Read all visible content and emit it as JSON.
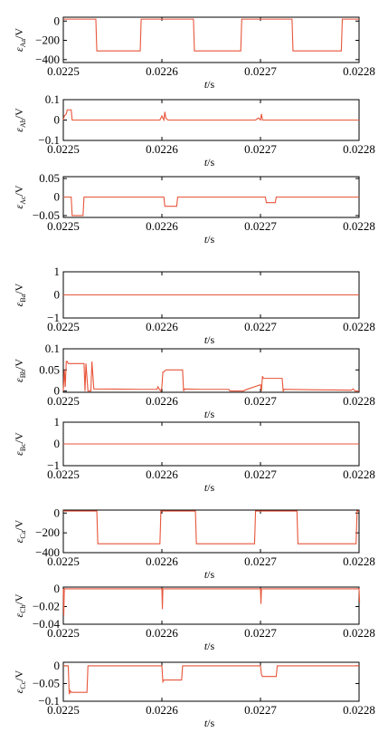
{
  "colors": {
    "trace": "#e8553a",
    "axis": "#000000",
    "background": "#ffffff"
  },
  "chart_data": [
    {
      "type": "line",
      "name": "Aa",
      "xlabel_sym": "t",
      "xlabel_unit": "/s",
      "ylabel_sym": "ε",
      "ylabel_sub": "Aa",
      "ylabel_unit": "/V",
      "xlim": [
        0.0225,
        0.0228
      ],
      "ylim": [
        -430,
        40
      ],
      "xticks": [
        "0.0225",
        "0.0226",
        "0.0227",
        "0.0228"
      ],
      "yticks": [
        {
          "v": 0,
          "t": "0"
        },
        {
          "v": -200,
          "t": "−200"
        },
        {
          "v": -400,
          "t": "−400"
        }
      ],
      "x": [
        0.0225,
        0.022533,
        0.022534,
        0.022578,
        0.022579,
        0.022632,
        0.022633,
        0.02268,
        0.022681,
        0.022732,
        0.022733,
        0.022782,
        0.022783,
        0.0228
      ],
      "y": [
        20,
        20,
        -310,
        -310,
        20,
        20,
        -310,
        -310,
        20,
        20,
        -310,
        -310,
        20,
        20
      ]
    },
    {
      "type": "line",
      "name": "Ab",
      "xlabel_sym": "t",
      "xlabel_unit": "/s",
      "ylabel_sym": "ε",
      "ylabel_sub": "Ab",
      "ylabel_unit": "/V",
      "xlim": [
        0.0225,
        0.0228
      ],
      "ylim": [
        -0.1,
        0.1
      ],
      "xticks": [
        "0.0225",
        "0.0226",
        "0.0227",
        "0.0228"
      ],
      "yticks": [
        {
          "v": 0.1,
          "t": "0.1"
        },
        {
          "v": 0,
          "t": "0"
        },
        {
          "v": -0.1,
          "t": "−0.1"
        }
      ],
      "x": [
        0.0225,
        0.022501,
        0.022503,
        0.022504,
        0.022508,
        0.022509,
        0.02251,
        0.022511,
        0.02254,
        0.022598,
        0.0226,
        0.022602,
        0.022603,
        0.022604,
        0.022606,
        0.02263,
        0.022695,
        0.022698,
        0.0227,
        0.022701,
        0.022702,
        0.02275,
        0.022795,
        0.0228
      ],
      "y": [
        0.0,
        0.02,
        0.03,
        0.05,
        0.05,
        0.0,
        0.0,
        0.0,
        0.0,
        0.0,
        0.02,
        0.0,
        0.04,
        0.01,
        0.0,
        0.0,
        0.0,
        0.01,
        0.0,
        0.03,
        0.0,
        0.0,
        0.0,
        0.0
      ]
    },
    {
      "type": "line",
      "name": "Ac",
      "xlabel_sym": "t",
      "xlabel_unit": "/s",
      "ylabel_sym": "ε",
      "ylabel_sub": "Ac",
      "ylabel_unit": "/V",
      "xlim": [
        0.0225,
        0.0228
      ],
      "ylim": [
        -0.055,
        0.055
      ],
      "xticks": [
        "0.0225",
        "0.0226",
        "0.0227",
        "0.0228"
      ],
      "yticks": [
        {
          "v": 0.05,
          "t": "0.05"
        },
        {
          "v": 0,
          "t": "0"
        },
        {
          "v": -0.05,
          "t": "−0.05"
        }
      ],
      "x": [
        0.0225,
        0.022508,
        0.022509,
        0.02252,
        0.022521,
        0.022602,
        0.022603,
        0.022615,
        0.022616,
        0.022705,
        0.022706,
        0.022715,
        0.022716,
        0.0228
      ],
      "y": [
        0.0,
        0.0,
        -0.05,
        -0.05,
        0.0,
        0.0,
        -0.025,
        -0.025,
        0.0,
        0.0,
        -0.015,
        -0.015,
        0.0,
        0.0
      ]
    },
    {
      "type": "line",
      "name": "Ba",
      "xlabel_sym": "t",
      "xlabel_unit": "/s",
      "ylabel_sym": "ε",
      "ylabel_sub": "Ba",
      "ylabel_unit": "/V",
      "xlim": [
        0.0225,
        0.0228
      ],
      "ylim": [
        -1,
        1
      ],
      "xticks": [
        "0.0225",
        "0.0226",
        "0.0227",
        "0.0228"
      ],
      "yticks": [
        {
          "v": 1,
          "t": "1"
        },
        {
          "v": 0,
          "t": "0"
        },
        {
          "v": -1,
          "t": "−1"
        }
      ],
      "x": [
        0.0225,
        0.0228
      ],
      "y": [
        0,
        0
      ]
    },
    {
      "type": "line",
      "name": "Bb",
      "xlabel_sym": "t",
      "xlabel_unit": "/s",
      "ylabel_sym": "ε",
      "ylabel_sub": "Bb",
      "ylabel_unit": "/V",
      "xlim": [
        0.0225,
        0.0228
      ],
      "ylim": [
        -0.003,
        0.1
      ],
      "xticks": [
        "0.0225",
        "0.0226",
        "0.0227",
        "0.0228"
      ],
      "yticks": [
        {
          "v": 0.1,
          "t": "0.1"
        },
        {
          "v": 0.05,
          "t": "0.05"
        },
        {
          "v": 0,
          "t": "0"
        }
      ],
      "x": [
        0.0225,
        0.022501,
        0.022502,
        0.022503,
        0.022504,
        0.022505,
        0.022521,
        0.022522,
        0.022523,
        0.022525,
        0.022528,
        0.022529,
        0.022531,
        0.02258,
        0.022595,
        0.022596,
        0.022598,
        0.022599,
        0.0226,
        0.022601,
        0.022602,
        0.022604,
        0.022605,
        0.022621,
        0.022622,
        0.022623,
        0.02264,
        0.022668,
        0.022669,
        0.022683,
        0.022684,
        0.0227,
        0.022701,
        0.022702,
        0.022703,
        0.022722,
        0.022723,
        0.022724,
        0.02275,
        0.022792,
        0.022794,
        0.022796,
        0.0228
      ],
      "y": [
        0.0,
        0.05,
        0.01,
        0.07,
        0.07,
        0.065,
        0.065,
        0.0,
        0.065,
        0.0,
        0.0,
        0.07,
        0.005,
        0.004,
        0.004,
        0.01,
        0.002,
        0.0,
        0.01,
        0.045,
        0.045,
        0.05,
        0.05,
        0.05,
        0.0,
        0.005,
        0.004,
        0.004,
        0.0,
        0.0,
        0.002,
        0.015,
        0.0,
        0.035,
        0.03,
        0.03,
        0.0,
        0.004,
        0.003,
        0.002,
        0.005,
        0.0,
        0.0
      ]
    },
    {
      "type": "line",
      "name": "Bc",
      "xlabel_sym": "t",
      "xlabel_unit": "/s",
      "ylabel_sym": "ε",
      "ylabel_sub": "Bc",
      "ylabel_unit": "/V",
      "xlim": [
        0.0225,
        0.0228
      ],
      "ylim": [
        -1,
        1
      ],
      "xticks": [
        "0.0225",
        "0.0226",
        "0.0227",
        "0.0228"
      ],
      "yticks": [
        {
          "v": 1,
          "t": "1"
        },
        {
          "v": 0,
          "t": "0"
        },
        {
          "v": -1,
          "t": "−1"
        }
      ],
      "x": [
        0.0225,
        0.0228
      ],
      "y": [
        0,
        0
      ]
    },
    {
      "type": "line",
      "name": "Ca",
      "xlabel_sym": "t",
      "xlabel_unit": "/s",
      "ylabel_sym": "ε",
      "ylabel_sub": "Ca",
      "ylabel_unit": "/V",
      "xlim": [
        0.0225,
        0.0228
      ],
      "ylim": [
        -400,
        30
      ],
      "xticks": [
        "0.0225",
        "0.0226",
        "0.0227",
        "0.0228"
      ],
      "yticks": [
        {
          "v": 0,
          "t": "0"
        },
        {
          "v": -200,
          "t": "−200"
        },
        {
          "v": -400,
          "t": "−400"
        }
      ],
      "x": [
        0.0225,
        0.022534,
        0.022535,
        0.022598,
        0.022599,
        0.022634,
        0.022635,
        0.022694,
        0.022695,
        0.022737,
        0.022738,
        0.022797,
        0.022798,
        0.0228
      ],
      "y": [
        20,
        20,
        -310,
        -310,
        20,
        20,
        -310,
        -310,
        20,
        20,
        -310,
        -310,
        20,
        20
      ]
    },
    {
      "type": "line",
      "name": "Cb",
      "xlabel_sym": "t",
      "xlabel_unit": "/s",
      "ylabel_sym": "ε",
      "ylabel_sub": "Cb",
      "ylabel_unit": "/V",
      "xlim": [
        0.0225,
        0.0228
      ],
      "ylim": [
        -0.04,
        0.002
      ],
      "xticks": [
        "0.0225",
        "0.0226",
        "0.0227",
        "0.0228"
      ],
      "yticks": [
        {
          "v": 0,
          "t": "0"
        },
        {
          "v": -0.02,
          "t": "−0.02"
        },
        {
          "v": -0.04,
          "t": "−0.04"
        }
      ],
      "x": [
        0.0225,
        0.0225005,
        0.022501,
        0.0226,
        0.0226005,
        0.022601,
        0.0227,
        0.0227005,
        0.022701,
        0.0228,
        0.0228005,
        0.022801
      ],
      "y": [
        0.0,
        -0.03,
        0.0,
        0.0,
        -0.023,
        0.0,
        0.0,
        -0.017,
        0.0,
        0.0,
        -0.015,
        -0.015
      ]
    },
    {
      "type": "line",
      "name": "Cc",
      "xlabel_sym": "t",
      "xlabel_unit": "/s",
      "ylabel_sym": "ε",
      "ylabel_sub": "Cc",
      "ylabel_unit": "/V",
      "xlim": [
        0.0225,
        0.0228
      ],
      "ylim": [
        -0.1,
        0.01
      ],
      "xticks": [
        "0.0225",
        "0.0226",
        "0.0227",
        "0.0228"
      ],
      "yticks": [
        {
          "v": 0,
          "t": "0"
        },
        {
          "v": -0.05,
          "t": "−0.05"
        },
        {
          "v": -0.1,
          "t": "−0.1"
        }
      ],
      "x": [
        0.0225,
        0.022505,
        0.022506,
        0.022507,
        0.022508,
        0.022524,
        0.022525,
        0.022526,
        0.0226,
        0.022601,
        0.022602,
        0.02262,
        0.022621,
        0.0227,
        0.022701,
        0.022702,
        0.022716,
        0.022717,
        0.022795,
        0.022796,
        0.0228
      ],
      "y": [
        0.0,
        0.0,
        -0.08,
        -0.07,
        -0.075,
        -0.075,
        0.0,
        0.0,
        0.0,
        -0.045,
        -0.04,
        -0.04,
        0.0,
        0.0,
        -0.025,
        -0.03,
        -0.03,
        0.0,
        0.0,
        0.0,
        0.0
      ]
    }
  ]
}
